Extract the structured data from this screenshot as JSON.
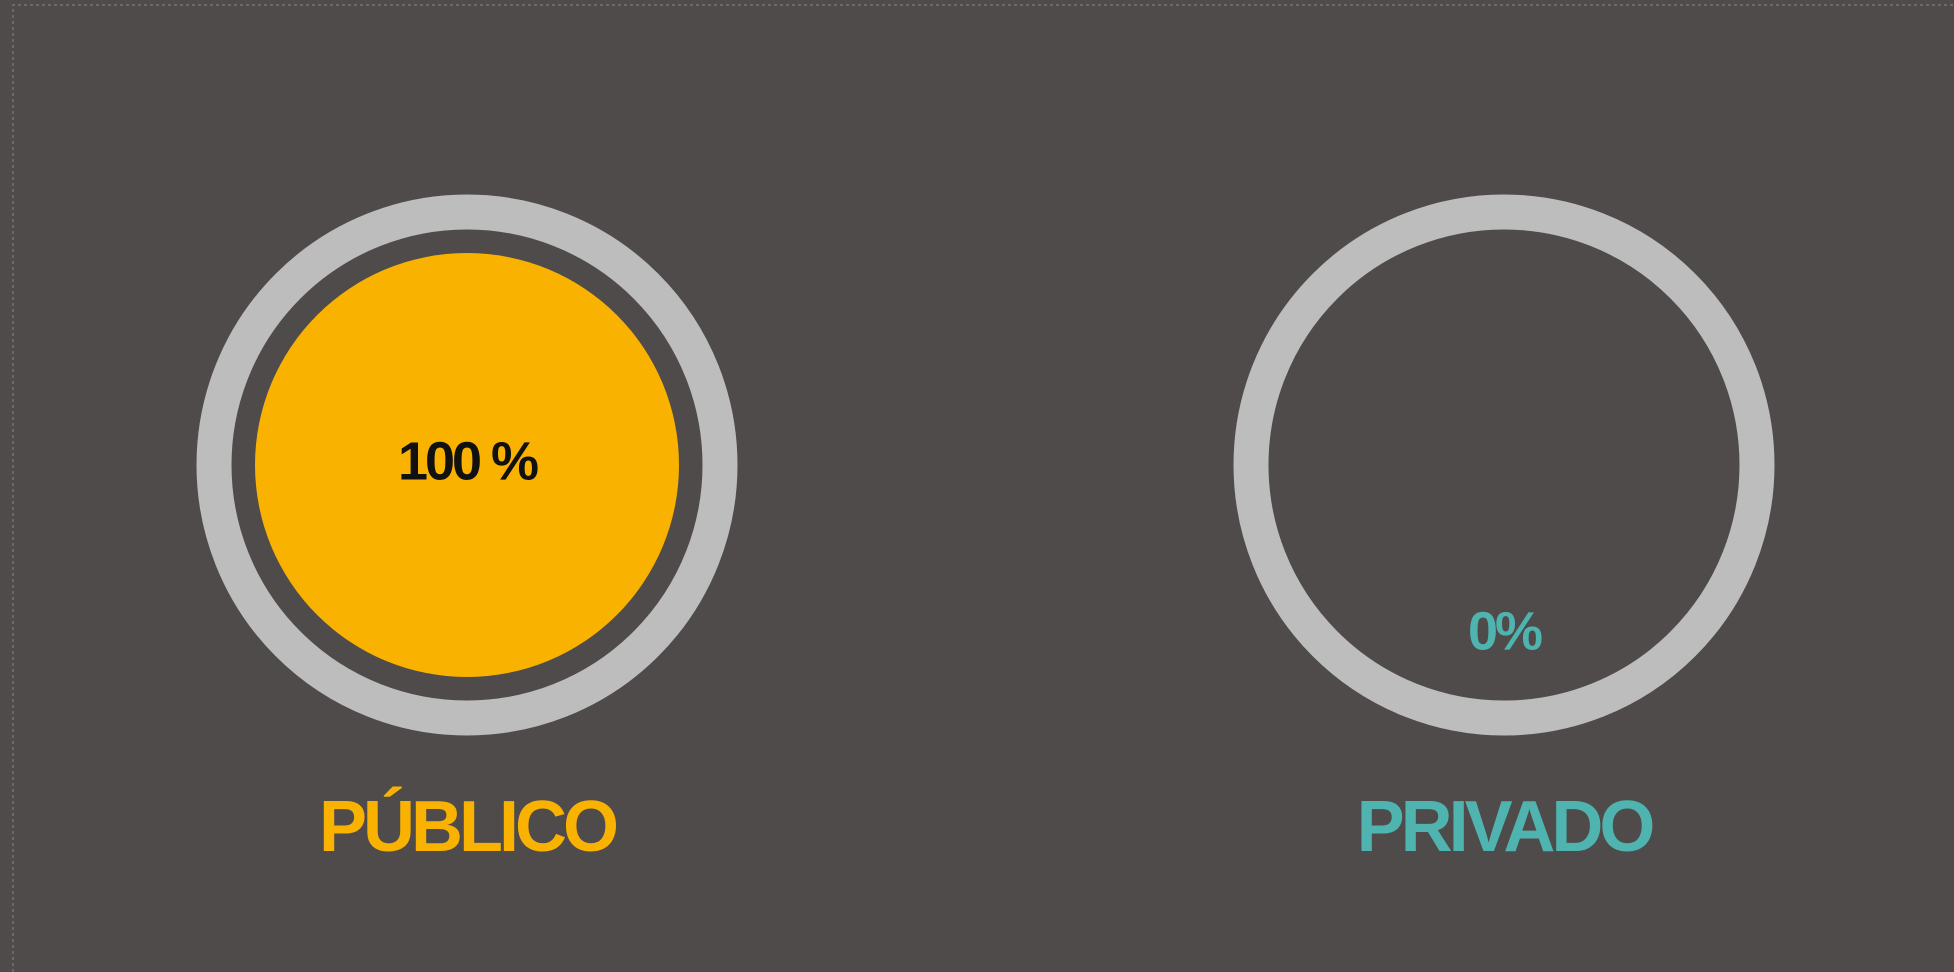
{
  "chart_data": {
    "type": "gauge",
    "categories": [
      "PÚBLICO",
      "PRIVADO"
    ],
    "values": [
      100,
      0
    ],
    "value_labels": [
      "100 %",
      "0%"
    ],
    "colors": [
      "#f9b200",
      "#4fb3b0"
    ],
    "label_colors": [
      "#111111",
      "#4fb3b0"
    ],
    "ring_color": "#bdbdbd"
  }
}
